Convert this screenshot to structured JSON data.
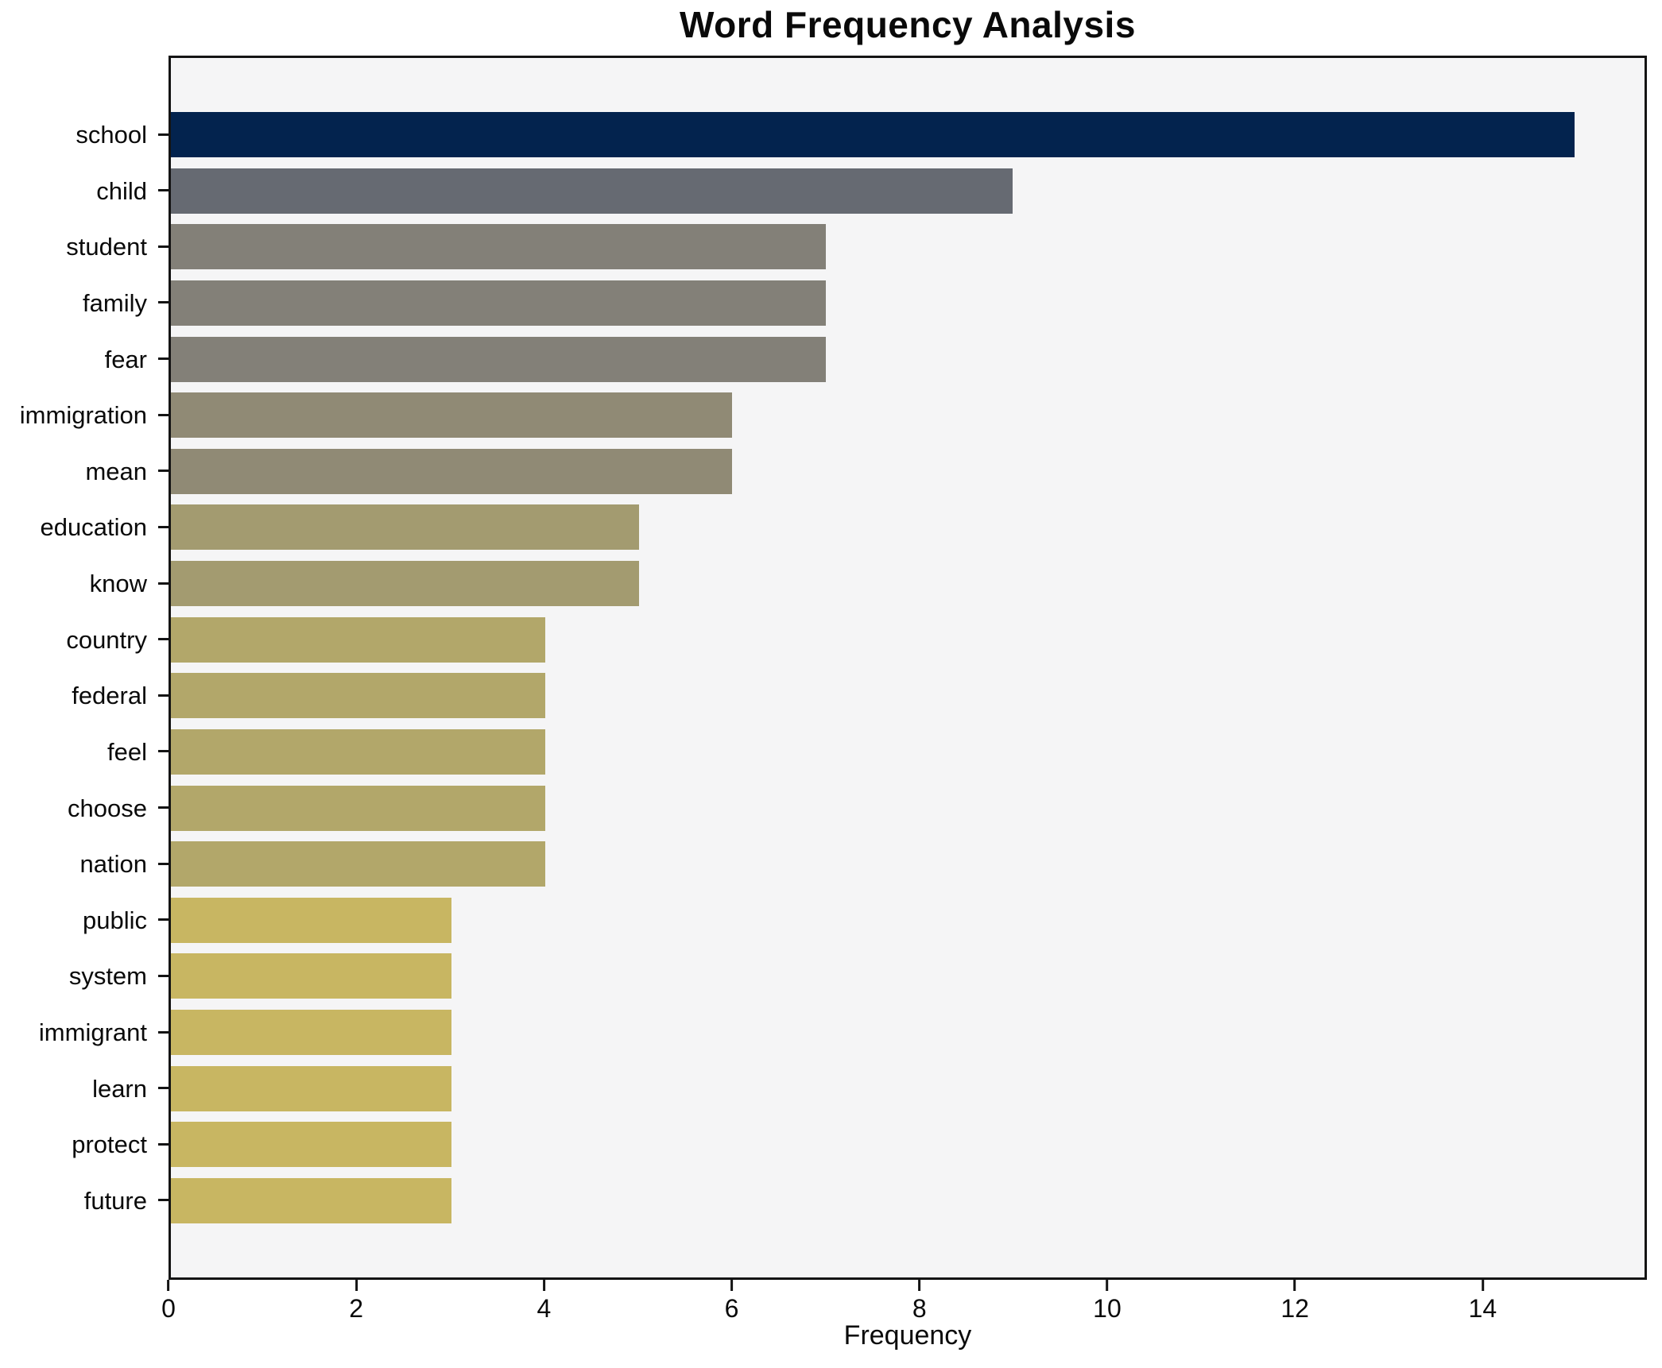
{
  "title": "Word Frequency Analysis",
  "chart_data": {
    "type": "bar",
    "orientation": "horizontal",
    "title": "Word Frequency Analysis",
    "xlabel": "Frequency",
    "ylabel": "",
    "categories": [
      "school",
      "child",
      "student",
      "family",
      "fear",
      "immigration",
      "mean",
      "education",
      "know",
      "country",
      "federal",
      "feel",
      "choose",
      "nation",
      "public",
      "system",
      "immigrant",
      "learn",
      "protect",
      "future"
    ],
    "values": [
      15,
      9,
      7,
      7,
      7,
      6,
      6,
      5,
      5,
      4,
      4,
      4,
      4,
      4,
      3,
      3,
      3,
      3,
      3,
      3
    ],
    "bar_colors": [
      "#03234e",
      "#666a72",
      "#838078",
      "#838078",
      "#838078",
      "#908a75",
      "#908a75",
      "#a39b70",
      "#a39b70",
      "#b2a76a",
      "#b2a76a",
      "#b2a76a",
      "#b2a76a",
      "#b2a76a",
      "#c8b662",
      "#c8b662",
      "#c8b662",
      "#c8b662",
      "#c8b662",
      "#c8b662"
    ],
    "xlim": [
      0,
      15.75
    ],
    "x_ticks": [
      0,
      2,
      4,
      6,
      8,
      10,
      12,
      14
    ],
    "grid": false,
    "legend": "none",
    "plot_background": "#f5f5f6",
    "figure_background": "#ffffff",
    "spine_color": "#141414"
  }
}
